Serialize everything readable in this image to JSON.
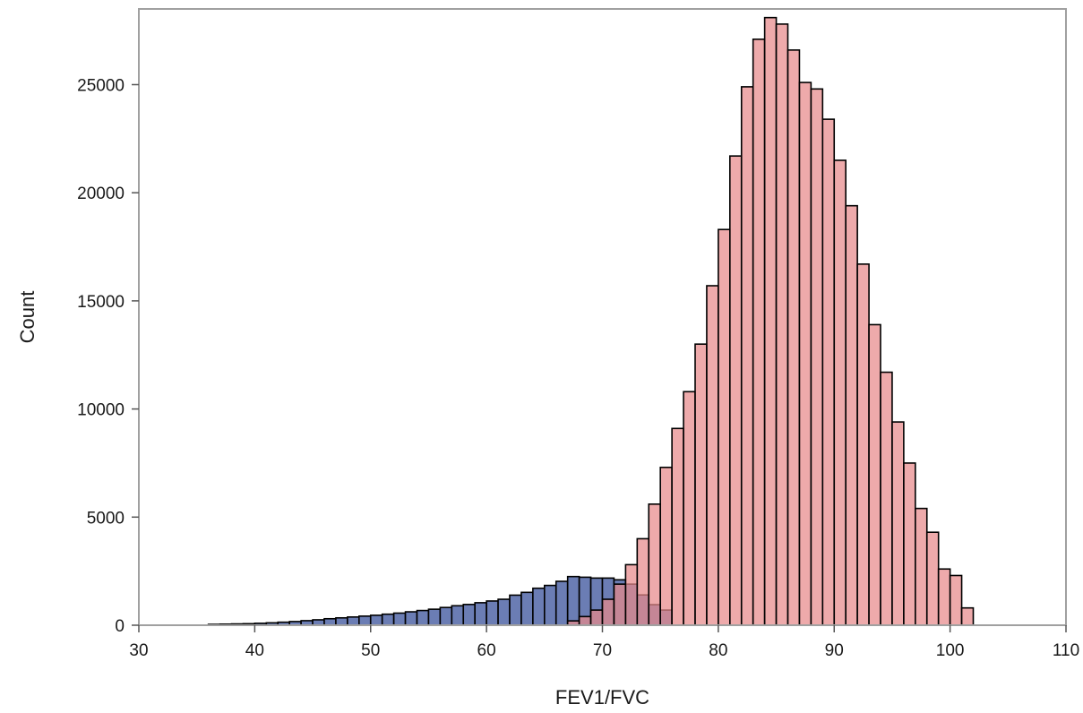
{
  "chart_data": {
    "type": "bar",
    "title": "",
    "xlabel": "FEV1/FVC",
    "ylabel": "Count",
    "xlim": [
      30,
      110
    ],
    "ylim": [
      0,
      28500
    ],
    "xticks": [
      30,
      40,
      50,
      60,
      70,
      80,
      90,
      100,
      110
    ],
    "yticks": [
      0,
      5000,
      10000,
      15000,
      20000,
      25000
    ],
    "grid": false,
    "legend": "none",
    "bin_width": 1,
    "colors": {
      "series_1": "#6b7db4",
      "series_2": "#e8898a",
      "overlap": "#a8525f",
      "edge": "#000000",
      "frame": "#a0a0a0"
    },
    "series": [
      {
        "bin_starts": [
          36,
          37,
          38,
          39,
          40,
          41,
          42,
          43,
          44,
          45,
          46,
          47,
          48,
          49,
          50,
          51,
          52,
          53,
          54,
          55,
          56,
          57,
          58,
          59,
          60,
          61,
          62,
          63,
          64,
          65,
          66,
          67,
          68,
          69,
          70,
          71,
          72,
          73,
          74,
          75
        ],
        "values": [
          40,
          50,
          60,
          70,
          90,
          110,
          140,
          170,
          210,
          250,
          300,
          340,
          380,
          420,
          460,
          510,
          560,
          620,
          680,
          740,
          820,
          900,
          960,
          1040,
          1120,
          1200,
          1390,
          1520,
          1710,
          1840,
          2030,
          2250,
          2220,
          2180,
          2180,
          2100,
          1900,
          1400,
          950,
          700
        ]
      },
      {
        "bin_starts": [
          67,
          68,
          69,
          70,
          71,
          72,
          73,
          74,
          75,
          76,
          77,
          78,
          79,
          80,
          81,
          82,
          83,
          84,
          85,
          86,
          87,
          88,
          89,
          90,
          91,
          92,
          93,
          94,
          95,
          96,
          97,
          98,
          99,
          100,
          101
        ],
        "values": [
          200,
          400,
          700,
          1200,
          1900,
          2800,
          4000,
          5600,
          7300,
          9100,
          10800,
          13000,
          15700,
          18300,
          21700,
          24900,
          27100,
          28100,
          27800,
          26600,
          25100,
          24800,
          23400,
          21500,
          19400,
          16700,
          13900,
          11700,
          9400,
          7500,
          5400,
          4300,
          2600,
          2300,
          800
        ]
      }
    ]
  }
}
